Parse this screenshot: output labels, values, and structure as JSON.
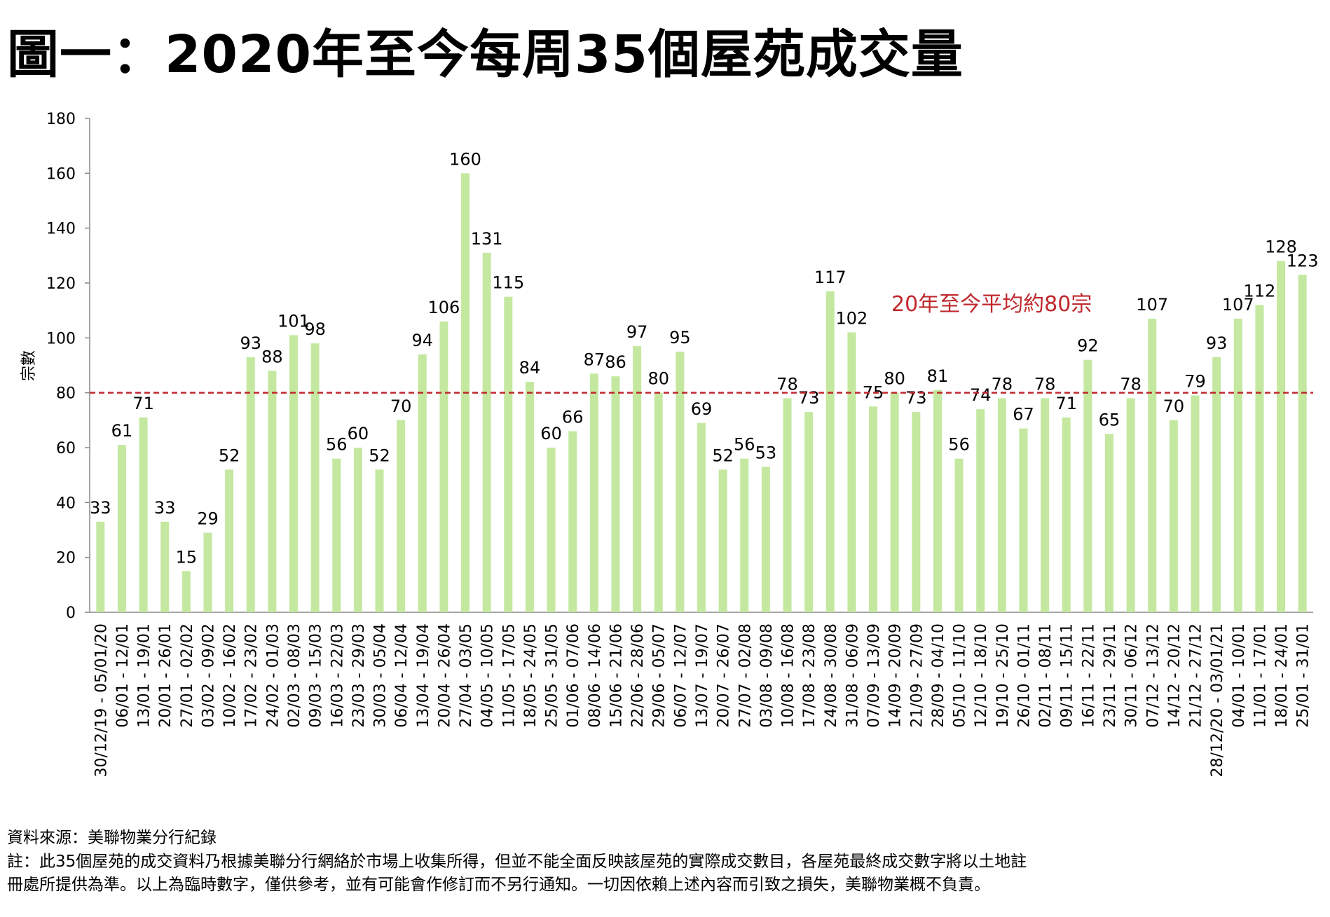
{
  "title": "圖一：2020年至今每周35個屋苑成交量",
  "footer": {
    "source": "資料來源：美聯物業分行紀錄",
    "note_line1": "註：此35個屋苑的成交資料乃根據美聯分行網絡於市場上收集所得，但並不能全面反映該屋苑的實際成交數目，各屋苑最終成交數字將以土地註",
    "note_line2": "冊處所提供為準。以上為臨時數字，僅供參考，並有可能會作修訂而不另行通知。一切因依賴上述內容而引致之損失，美聯物業概不負責。"
  },
  "chart_data": {
    "type": "bar",
    "title": "圖一：2020年至今每周35個屋苑成交量",
    "xlabel": "",
    "ylabel": "宗數",
    "ylim": [
      0,
      180
    ],
    "yticks": [
      0,
      20,
      40,
      60,
      80,
      100,
      120,
      140,
      160,
      180
    ],
    "grid": false,
    "bar_color": "#c4e8a0",
    "reference_line": {
      "value": 80,
      "label": "20年至今平均約80宗",
      "color": "#c0282d",
      "style": "dashed"
    },
    "categories": [
      "30/12/19 - 05/01/20",
      "06/01 - 12/01",
      "13/01 - 19/01",
      "20/01 - 26/01",
      "27/01 - 02/02",
      "03/02 - 09/02",
      "10/02 - 16/02",
      "17/02 - 23/02",
      "24/02 - 01/03",
      "02/03 - 08/03",
      "09/03 - 15/03",
      "16/03 - 22/03",
      "23/03 - 29/03",
      "30/03 - 05/04",
      "06/04 - 12/04",
      "13/04 - 19/04",
      "20/04 - 26/04",
      "27/04 - 03/05",
      "04/05 - 10/05",
      "11/05 - 17/05",
      "18/05 - 24/05",
      "25/05 - 31/05",
      "01/06 - 07/06",
      "08/06 - 14/06",
      "15/06 - 21/06",
      "22/06 - 28/06",
      "29/06 - 05/07",
      "06/07 - 12/07",
      "13/07 - 19/07",
      "20/07 - 26/07",
      "27/07 - 02/08",
      "03/08 - 09/08",
      "10/08 - 16/08",
      "17/08 - 23/08",
      "24/08 - 30/08",
      "31/08 - 06/09",
      "07/09 - 13/09",
      "14/09 - 20/09",
      "21/09 - 27/09",
      "28/09 - 04/10",
      "05/10 - 11/10",
      "12/10 - 18/10",
      "19/10 - 25/10",
      "26/10 - 01/11",
      "02/11 - 08/11",
      "09/11 - 15/11",
      "16/11 - 22/11",
      "23/11 - 29/11",
      "30/11 - 06/12",
      "07/12 - 13/12",
      "14/12 - 20/12",
      "21/12 - 27/12",
      "28/12/20 - 03/01/21",
      "04/01 - 10/01",
      "11/01 - 17/01",
      "18/01 - 24/01",
      "25/01 - 31/01"
    ],
    "values": [
      33,
      61,
      71,
      33,
      15,
      29,
      52,
      93,
      88,
      101,
      98,
      56,
      60,
      52,
      70,
      94,
      106,
      160,
      131,
      115,
      84,
      60,
      66,
      87,
      86,
      97,
      80,
      95,
      69,
      52,
      56,
      53,
      78,
      73,
      117,
      102,
      75,
      80,
      73,
      81,
      56,
      74,
      78,
      67,
      78,
      71,
      92,
      65,
      78,
      107,
      70,
      79,
      93,
      107,
      112,
      128,
      123
    ]
  }
}
